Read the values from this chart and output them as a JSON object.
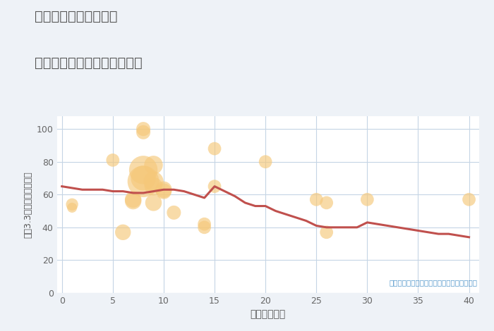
{
  "title_line1": "三重県松阪市小阿坂町",
  "title_line2": "築年数別中古マンション価格",
  "xlabel": "築年数（年）",
  "ylabel": "平（3.3㎡）単価（万円）",
  "annotation": "円の大きさは、取引のあった物件面積を示す",
  "bg_color": "#eef2f7",
  "plot_bg_color": "#ffffff",
  "scatter_color": "#f5c87a",
  "scatter_alpha": 0.65,
  "line_color": "#c0504d",
  "line_width": 2.2,
  "grid_color": "#c5d5e5",
  "xlim": [
    -0.5,
    41
  ],
  "ylim": [
    0,
    108
  ],
  "xticks": [
    0,
    5,
    10,
    15,
    20,
    25,
    30,
    35,
    40
  ],
  "yticks": [
    0,
    20,
    40,
    60,
    80,
    100
  ],
  "scatter_x": [
    1,
    1,
    5,
    6,
    7,
    7,
    8,
    8,
    8,
    8,
    8,
    9,
    9,
    9,
    9,
    10,
    10,
    11,
    14,
    14,
    15,
    15,
    20,
    25,
    26,
    26,
    30,
    40
  ],
  "scatter_y": [
    54,
    52,
    81,
    37,
    57,
    56,
    98,
    100,
    75,
    70,
    68,
    78,
    68,
    65,
    55,
    63,
    62,
    49,
    40,
    42,
    88,
    65,
    80,
    57,
    55,
    37,
    57,
    57
  ],
  "scatter_size": [
    12,
    8,
    14,
    20,
    22,
    22,
    16,
    16,
    65,
    50,
    80,
    28,
    32,
    26,
    22,
    22,
    20,
    16,
    14,
    14,
    14,
    14,
    14,
    14,
    14,
    14,
    14,
    14
  ],
  "trend_x": [
    0,
    1,
    2,
    3,
    4,
    5,
    6,
    7,
    8,
    9,
    10,
    11,
    12,
    13,
    14,
    15,
    16,
    17,
    18,
    19,
    20,
    21,
    22,
    23,
    24,
    25,
    26,
    27,
    28,
    29,
    30,
    31,
    32,
    33,
    34,
    35,
    36,
    37,
    38,
    39,
    40
  ],
  "trend_y": [
    65,
    64,
    63,
    63,
    63,
    62,
    62,
    61,
    61,
    62,
    63,
    63,
    62,
    60,
    58,
    65,
    62,
    59,
    55,
    53,
    53,
    50,
    48,
    46,
    44,
    41,
    40,
    40,
    40,
    40,
    43,
    42,
    41,
    40,
    39,
    38,
    37,
    36,
    36,
    35,
    34
  ]
}
